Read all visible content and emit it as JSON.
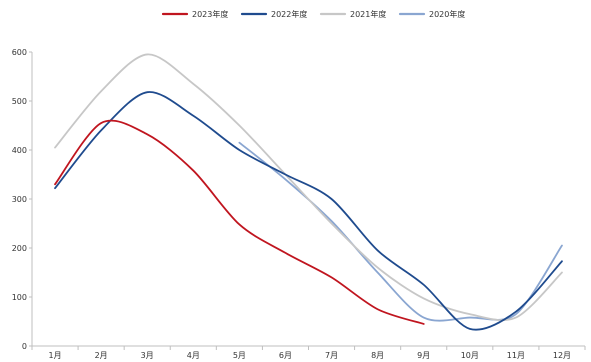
{
  "chart_data": {
    "type": "line",
    "categories": [
      "1月",
      "2月",
      "3月",
      "4月",
      "5月",
      "6月",
      "7月",
      "8月",
      "9月",
      "10月",
      "11月",
      "12月"
    ],
    "ylim": [
      0,
      600
    ],
    "yticks": [
      0,
      100,
      200,
      300,
      400,
      500,
      600
    ],
    "grid": false,
    "legend_position": "top-center",
    "series": [
      {
        "name": "2023年度",
        "color": "#c0151f",
        "values": [
          330,
          455,
          432,
          358,
          248,
          190,
          140,
          75,
          45,
          null,
          null,
          null
        ]
      },
      {
        "name": "2022年度",
        "color": "#1f4b8e",
        "values": [
          322,
          440,
          518,
          470,
          400,
          350,
          300,
          195,
          125,
          35,
          70,
          173
        ]
      },
      {
        "name": "2021年度",
        "color": "#c7c7c7",
        "values": [
          405,
          520,
          595,
          535,
          450,
          350,
          250,
          160,
          97,
          65,
          58,
          150
        ]
      },
      {
        "name": "2020年度",
        "color": "#8aa6d1",
        "values": [
          null,
          null,
          null,
          null,
          415,
          340,
          255,
          150,
          58,
          58,
          65,
          205
        ]
      }
    ]
  }
}
